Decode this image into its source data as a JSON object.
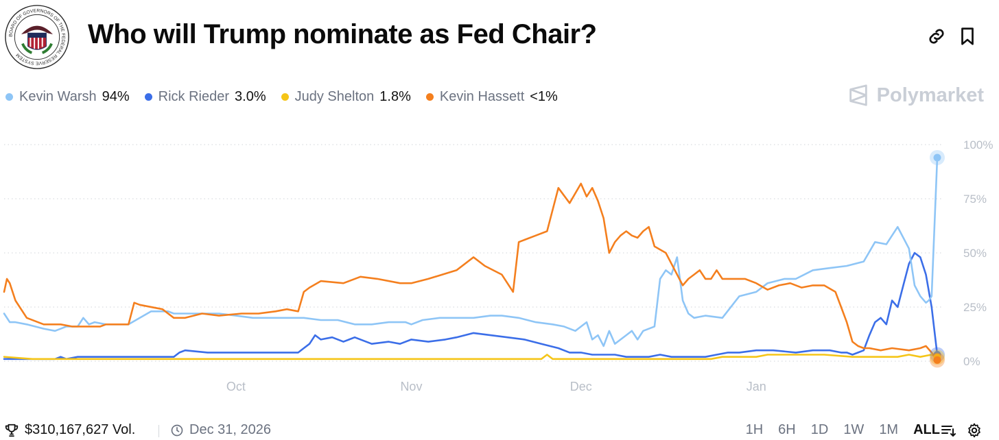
{
  "header": {
    "title": "Who will Trump nominate as Fed Chair?",
    "seal_text": "BOARD OF GOVERNORS OF THE FEDERAL RESERVE SYSTEM",
    "link_icon": "link-icon",
    "bookmark_icon": "bookmark-icon"
  },
  "brand": {
    "name": "Polymarket",
    "logo_icon": "polymarket-logo-icon"
  },
  "legend": [
    {
      "name": "Kevin Warsh",
      "value": "94%",
      "color": "#8ec5f6"
    },
    {
      "name": "Rick Rieder",
      "value": "3.0%",
      "color": "#3b6ee8"
    },
    {
      "name": "Judy Shelton",
      "value": "1.8%",
      "color": "#f5c518"
    },
    {
      "name": "Kevin Hassett",
      "value": "<1%",
      "color": "#f47f1e"
    }
  ],
  "footer": {
    "volume": "$310,167,627 Vol.",
    "end_date": "Dec 31, 2026",
    "trophy_icon": "trophy-icon",
    "clock_icon": "clock-icon",
    "ranges": [
      "1H",
      "6H",
      "1D",
      "1W",
      "1M",
      "ALL"
    ],
    "active_range": "ALL",
    "sort_icon": "sort-lines-icon",
    "settings_icon": "gear-icon"
  },
  "chart_data": {
    "type": "line",
    "title": "Who will Trump nominate as Fed Chair?",
    "xlabel": "",
    "ylabel": "",
    "x_domain_days": [
      0,
      165
    ],
    "ylim": [
      0,
      100
    ],
    "y_ticks": [
      0,
      25,
      50,
      75,
      100
    ],
    "y_tick_labels": [
      "0%",
      "25%",
      "50%",
      "75%",
      "100%"
    ],
    "x_ticks": [
      {
        "label": "Oct",
        "day": 41
      },
      {
        "label": "Nov",
        "day": 72
      },
      {
        "label": "Dec",
        "day": 102
      },
      {
        "label": "Jan",
        "day": 133
      }
    ],
    "grid": "horizontal-dotted",
    "series": [
      {
        "name": "Kevin Warsh",
        "color": "#8ec5f6",
        "x": [
          0,
          1,
          2,
          4,
          7,
          9,
          11,
          13,
          14,
          15,
          16,
          18,
          22,
          26,
          29,
          30,
          32,
          36,
          38,
          41,
          44,
          47,
          50,
          53,
          56,
          59,
          62,
          65,
          68,
          71,
          72,
          74,
          77,
          80,
          83,
          86,
          88,
          91,
          94,
          97,
          99,
          101,
          103,
          104,
          105,
          106,
          107,
          108,
          110,
          111,
          112,
          113,
          115,
          116,
          117,
          118,
          119,
          120,
          121,
          122,
          124,
          127,
          130,
          133,
          135,
          138,
          140,
          143,
          146,
          149,
          152,
          154,
          156,
          158,
          160,
          161,
          162,
          163,
          163.5,
          164,
          165
        ],
        "y": [
          22,
          18,
          18,
          17,
          15,
          14,
          16,
          16,
          20,
          17,
          18,
          17,
          17,
          23,
          23,
          22,
          22,
          22,
          22,
          21,
          20,
          20,
          20,
          20,
          19,
          19,
          17,
          17,
          18,
          18,
          17,
          19,
          20,
          20,
          20,
          21,
          21,
          20,
          18,
          17,
          16,
          14,
          18,
          10,
          12,
          7,
          14,
          8,
          12,
          14,
          10,
          14,
          16,
          38,
          42,
          40,
          48,
          28,
          22,
          20,
          21,
          20,
          30,
          32,
          36,
          38,
          38,
          42,
          43,
          44,
          46,
          55,
          54,
          62,
          52,
          35,
          30,
          27,
          28,
          30,
          94
        ],
        "end_value": 94
      },
      {
        "name": "Rick Rieder",
        "color": "#3b6ee8",
        "x": [
          0,
          5,
          9,
          10,
          11,
          13,
          18,
          24,
          30,
          31,
          32,
          36,
          40,
          45,
          52,
          53,
          54,
          55,
          56,
          58,
          60,
          62,
          65,
          68,
          70,
          72,
          75,
          78,
          80,
          83,
          86,
          89,
          92,
          95,
          98,
          100,
          102,
          104,
          106,
          108,
          110,
          112,
          114,
          116,
          118,
          120,
          122,
          124,
          126,
          128,
          130,
          133,
          136,
          140,
          143,
          146,
          148,
          149,
          150,
          151,
          152,
          153,
          154,
          155,
          156,
          157,
          158,
          159,
          160,
          161,
          162,
          163,
          164,
          165
        ],
        "y": [
          1,
          1,
          1,
          2,
          1,
          2,
          2,
          2,
          2,
          4,
          5,
          4,
          4,
          4,
          4,
          6,
          8,
          12,
          10,
          11,
          9,
          11,
          8,
          9,
          8,
          10,
          9,
          10,
          11,
          13,
          12,
          11,
          10,
          8,
          6,
          4,
          4,
          3,
          3,
          3,
          2,
          2,
          2,
          3,
          2,
          2,
          2,
          2,
          3,
          4,
          4,
          5,
          5,
          4,
          5,
          5,
          4,
          4,
          3,
          4,
          5,
          12,
          18,
          20,
          17,
          28,
          25,
          35,
          45,
          50,
          48,
          40,
          25,
          3
        ],
        "end_value": 3.0
      },
      {
        "name": "Judy Shelton",
        "color": "#f5c518",
        "x": [
          0,
          5,
          10,
          20,
          30,
          40,
          50,
          60,
          70,
          80,
          90,
          95,
          96,
          97,
          100,
          110,
          120,
          125,
          127,
          130,
          133,
          135,
          140,
          145,
          150,
          155,
          158,
          160,
          162,
          164,
          165
        ],
        "y": [
          2,
          1,
          1,
          1,
          1,
          1,
          1,
          1,
          1,
          1,
          1,
          1,
          3,
          1,
          1,
          1,
          1,
          1,
          2,
          2,
          2,
          3,
          3,
          3,
          2,
          2,
          2,
          3,
          2,
          3,
          1.8
        ],
        "end_value": 1.8
      },
      {
        "name": "Kevin Hassett",
        "color": "#f47f1e",
        "x": [
          0,
          0.5,
          1,
          2,
          4,
          7,
          10,
          12,
          14,
          17,
          18,
          22,
          23,
          24,
          28,
          30,
          32,
          35,
          38,
          42,
          45,
          48,
          50,
          52,
          53,
          54,
          56,
          60,
          63,
          66,
          70,
          72,
          75,
          80,
          83,
          85,
          88,
          90,
          91,
          92,
          94,
          96,
          98,
          100,
          102,
          103,
          104,
          105,
          106,
          107,
          108,
          109,
          110,
          111,
          112,
          113,
          114,
          115,
          117,
          118,
          120,
          121,
          122,
          123,
          124,
          125,
          126,
          127,
          129,
          131,
          133,
          135,
          137,
          139,
          141,
          143,
          145,
          147,
          148,
          149,
          150,
          151,
          152,
          153,
          155,
          157,
          160,
          162,
          163,
          164,
          165
        ],
        "y": [
          32,
          38,
          36,
          28,
          20,
          17,
          17,
          16,
          16,
          16,
          17,
          17,
          27,
          26,
          24,
          20,
          20,
          22,
          21,
          22,
          22,
          23,
          24,
          23,
          32,
          34,
          37,
          36,
          39,
          38,
          36,
          36,
          38,
          42,
          48,
          44,
          40,
          32,
          55,
          56,
          58,
          60,
          80,
          73,
          82,
          76,
          80,
          74,
          66,
          50,
          55,
          58,
          60,
          58,
          57,
          60,
          62,
          53,
          50,
          45,
          35,
          38,
          40,
          42,
          38,
          38,
          42,
          38,
          38,
          38,
          36,
          33,
          35,
          36,
          34,
          35,
          35,
          32,
          25,
          18,
          9,
          7,
          6,
          6,
          5,
          6,
          5,
          6,
          7,
          4,
          0.5
        ],
        "end_value": 0.5
      }
    ]
  }
}
